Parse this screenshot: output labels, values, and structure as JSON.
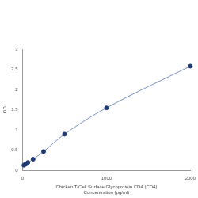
{
  "chart_data": {
    "type": "scatter",
    "xlabel": [
      "Chicken T-Cell Surface Glycoprotein CD4 (CD4)",
      "Concentration (pg/ml)"
    ],
    "ylabel": "OD",
    "x": [
      15.6,
      31.25,
      62.5,
      125,
      250,
      500,
      1000,
      2000
    ],
    "values": [
      0.13,
      0.16,
      0.2,
      0.28,
      0.47,
      0.9,
      1.55,
      2.58
    ],
    "color": "#1f3a73",
    "line_color": "#7b8fc4",
    "marker": "circle",
    "line_style": "solid",
    "xlim": [
      0,
      2000
    ],
    "xticks": [
      0,
      1000,
      2000
    ],
    "ylim": [
      0,
      3
    ],
    "yticks": [
      0,
      0.5,
      1,
      1.5,
      2,
      2.5,
      3
    ],
    "grid": false
  }
}
